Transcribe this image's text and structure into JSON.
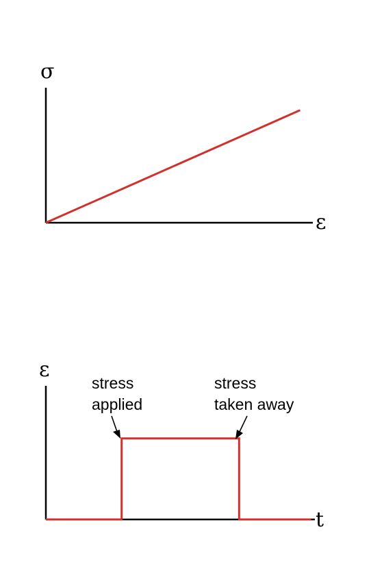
{
  "chart_data": [
    {
      "type": "line",
      "title": "",
      "ylabel": "σ",
      "xlabel": "ε",
      "series": [
        {
          "x": [
            0,
            1
          ],
          "values": [
            0,
            1
          ]
        }
      ],
      "xlim": [
        0,
        1.05
      ],
      "ylim": [
        0,
        1.2
      ],
      "grid": false
    },
    {
      "type": "line",
      "title": "",
      "ylabel": "ε",
      "xlabel": "t",
      "series": [
        {
          "x": [
            0,
            1,
            1,
            2.55,
            2.55,
            3.5
          ],
          "values": [
            0,
            0,
            1,
            1,
            0,
            0
          ]
        }
      ],
      "xlim": [
        0,
        3.55
      ],
      "ylim": [
        0,
        1.65
      ],
      "annotations": [
        {
          "line1": "stress",
          "line2": "applied",
          "at_x": 1
        },
        {
          "line1": "stress",
          "line2": "taken away",
          "at_x": 2.55
        }
      ],
      "grid": false
    }
  ],
  "colors": {
    "series": "#d0312d",
    "axis": "#000000"
  }
}
